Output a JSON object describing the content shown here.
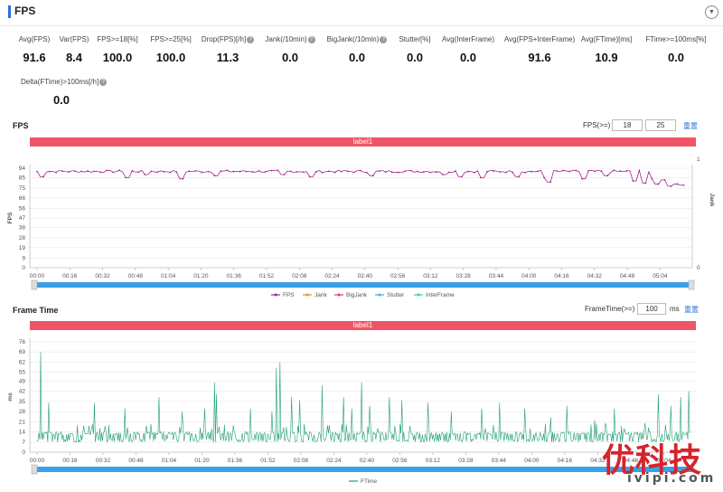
{
  "header": {
    "title": "FPS",
    "toggle_icon": "chevron-down-icon"
  },
  "metrics": [
    {
      "label": "Avg(FPS)",
      "value": "91.6",
      "help": false
    },
    {
      "label": "Var(FPS)",
      "value": "8.4",
      "help": false
    },
    {
      "label": "FPS>=18[%]",
      "value": "100.0",
      "help": false
    },
    {
      "label": "FPS>=25[%]",
      "value": "100.0",
      "help": false
    },
    {
      "label": "Drop(FPS)[/h]",
      "value": "11.3",
      "help": true
    },
    {
      "label": "Jank(/10min)",
      "value": "0.0",
      "help": true
    },
    {
      "label": "BigJank(/10min)",
      "value": "0.0",
      "help": true
    },
    {
      "label": "Stutter[%]",
      "value": "0.0",
      "help": false
    },
    {
      "label": "Avg(InterFrame)",
      "value": "0.0",
      "help": false
    },
    {
      "label": "Avg(FPS+InterFrame)",
      "value": "91.6",
      "help": false
    },
    {
      "label": "Avg(FTime)[ms]",
      "value": "10.9",
      "help": false
    },
    {
      "label": "FTime>=100ms[%]",
      "value": "0.0",
      "help": false
    },
    {
      "label": "Delta(FTime)>100ms[/h]",
      "value": "0.0",
      "help": true
    }
  ],
  "help_glyph": "?",
  "fps_section": {
    "title": "FPS",
    "threshold_label": "FPS(>=)",
    "threshold_1": "18",
    "threshold_2": "25",
    "reset_label": "重置",
    "bar_label": "label1",
    "ylabel": "FPS",
    "y2label": "Jank",
    "legend": [
      "FPS",
      "Jank",
      "BigJank",
      "Stutter",
      "InterFrame"
    ]
  },
  "ft_section": {
    "title": "Frame Time",
    "threshold_label": "FrameTime(>=)",
    "threshold_value": "100",
    "unit": "ms",
    "reset_label": "重置",
    "bar_label": "label1",
    "ylabel": "ms",
    "legend": [
      "FTime"
    ]
  },
  "colors": {
    "fps": "#a0288c",
    "jank": "#f08c28",
    "bigjank": "#e83c50",
    "stutter": "#3cb4dc",
    "interframe": "#3cc8b4",
    "ftime": "#1f9e73",
    "slider": "#3aa0e8",
    "accent": "#2b6fd6",
    "label_bar": "#ef5566"
  },
  "watermark": {
    "title": "优科技",
    "url": "ivipi.com"
  },
  "chart_data": [
    {
      "type": "line",
      "title": "FPS",
      "xlabel": "",
      "ylabel": "FPS",
      "y2label": "Jank",
      "ylim": [
        0,
        94
      ],
      "yticks": [
        0,
        9,
        19,
        28,
        38,
        47,
        56,
        66,
        75,
        85,
        94
      ],
      "y2ticks": [
        0,
        1
      ],
      "x_ticks": [
        "00:00",
        "00:16",
        "00:32",
        "00:48",
        "01:04",
        "01:20",
        "01:36",
        "01:52",
        "02:08",
        "02:24",
        "02:40",
        "02:56",
        "03:12",
        "03:28",
        "03:44",
        "04:00",
        "04:16",
        "04:32",
        "04:48",
        "05:04"
      ],
      "duration_s": 328,
      "series": [
        {
          "name": "FPS",
          "base": 91,
          "dips": [
            [
              2,
              86
            ],
            [
              45,
              85
            ],
            [
              56,
              88
            ],
            [
              73,
              84
            ],
            [
              90,
              87
            ],
            [
              124,
              88
            ],
            [
              138,
              86
            ],
            [
              168,
              87
            ],
            [
              205,
              88
            ],
            [
              213,
              86
            ],
            [
              225,
              85
            ],
            [
              242,
              86
            ],
            [
              257,
              85
            ],
            [
              258,
              81
            ],
            [
              276,
              84
            ],
            [
              287,
              87
            ],
            [
              302,
              82
            ],
            [
              306,
              80
            ],
            [
              312,
              84
            ],
            [
              313,
              79
            ],
            [
              316,
              83
            ],
            [
              320,
              77
            ],
            [
              322,
              79
            ],
            [
              325,
              78
            ],
            [
              327,
              86
            ]
          ]
        },
        {
          "name": "Jank",
          "values": []
        },
        {
          "name": "BigJank",
          "values": []
        },
        {
          "name": "Stutter",
          "values": []
        },
        {
          "name": "InterFrame",
          "values": []
        }
      ],
      "grid": true,
      "legend_position": "bottom"
    },
    {
      "type": "line",
      "title": "Frame Time",
      "xlabel": "",
      "ylabel": "ms",
      "ylim": [
        0,
        76
      ],
      "yticks": [
        0,
        7,
        14,
        21,
        28,
        35,
        42,
        49,
        55,
        62,
        69,
        76
      ],
      "x_ticks": [
        "00:00",
        "00:16",
        "00:32",
        "00:48",
        "01:04",
        "01:20",
        "01:36",
        "01:52",
        "02:08",
        "02:24",
        "02:40",
        "02:56",
        "03:12",
        "03:28",
        "03:44",
        "04:00",
        "04:16",
        "04:32",
        "04:48",
        "05:04"
      ],
      "duration_s": 328,
      "series": [
        {
          "name": "FTime",
          "base_low": 7,
          "base_high": 14,
          "spikes": [
            [
              2,
              69
            ],
            [
              6,
              34
            ],
            [
              29,
              34
            ],
            [
              44,
              30
            ],
            [
              61,
              38
            ],
            [
              73,
              28
            ],
            [
              84,
              30
            ],
            [
              89,
              48
            ],
            [
              90,
              40
            ],
            [
              107,
              30
            ],
            [
              118,
              28
            ],
            [
              120,
              58
            ],
            [
              122,
              62
            ],
            [
              128,
              38
            ],
            [
              132,
              36
            ],
            [
              143,
              46
            ],
            [
              154,
              38
            ],
            [
              158,
              30
            ],
            [
              163,
              48
            ],
            [
              167,
              32
            ],
            [
              177,
              38
            ],
            [
              183,
              36
            ],
            [
              196,
              34
            ],
            [
              208,
              28
            ],
            [
              223,
              30
            ],
            [
              232,
              34
            ],
            [
              245,
              30
            ],
            [
              258,
              24
            ],
            [
              266,
              32
            ],
            [
              280,
              22
            ],
            [
              290,
              30
            ],
            [
              305,
              20
            ],
            [
              312,
              40
            ],
            [
              318,
              32
            ],
            [
              323,
              38
            ],
            [
              327,
              42
            ]
          ]
        }
      ],
      "grid": true,
      "legend_position": "bottom"
    }
  ]
}
